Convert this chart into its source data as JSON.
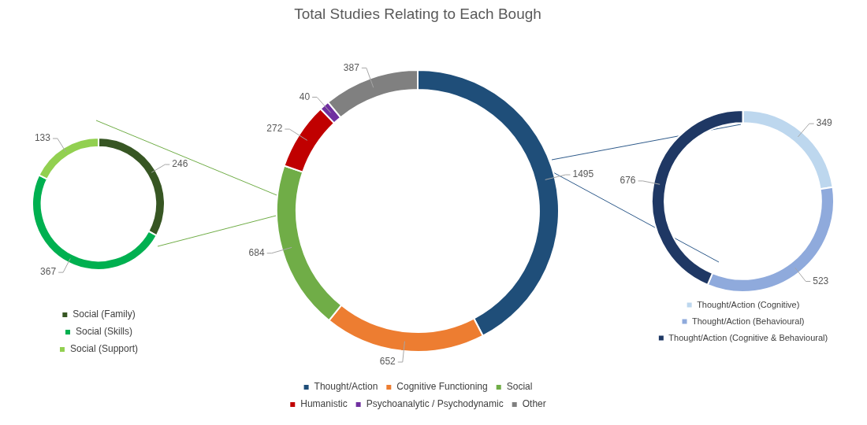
{
  "chart_data": [
    {
      "type": "donut",
      "categories": [
        "Social (Family)",
        "Social (Skills)",
        "Social (Support)"
      ],
      "values": [
        246,
        367,
        133
      ],
      "colors": [
        "#375623",
        "#00b050",
        "#92d050"
      ],
      "data_labels": true,
      "legend": "bottom"
    },
    {
      "type": "donut",
      "title": "Total Studies Relating to Each Bough",
      "categories": [
        "Thought/Action",
        "Cognitive Functioning",
        "Social",
        "Humanistic",
        "Psychoanalytic / Psychodynamic",
        "Other"
      ],
      "values": [
        1495,
        652,
        684,
        272,
        40,
        387
      ],
      "colors": [
        "#1f4e79",
        "#ed7d31",
        "#70ad47",
        "#c00000",
        "#7030a0",
        "#808080"
      ],
      "data_labels": true,
      "legend": "bottom"
    },
    {
      "type": "donut",
      "categories": [
        "Thought/Action (Cognitive)",
        "Thought/Action (Behavioural)",
        "Thought/Action (Cognitive & Behavioural)"
      ],
      "values": [
        349,
        523,
        676
      ],
      "colors": [
        "#bdd7ee",
        "#8faadc",
        "#1f3864"
      ],
      "data_labels": true,
      "legend": "bottom"
    }
  ]
}
